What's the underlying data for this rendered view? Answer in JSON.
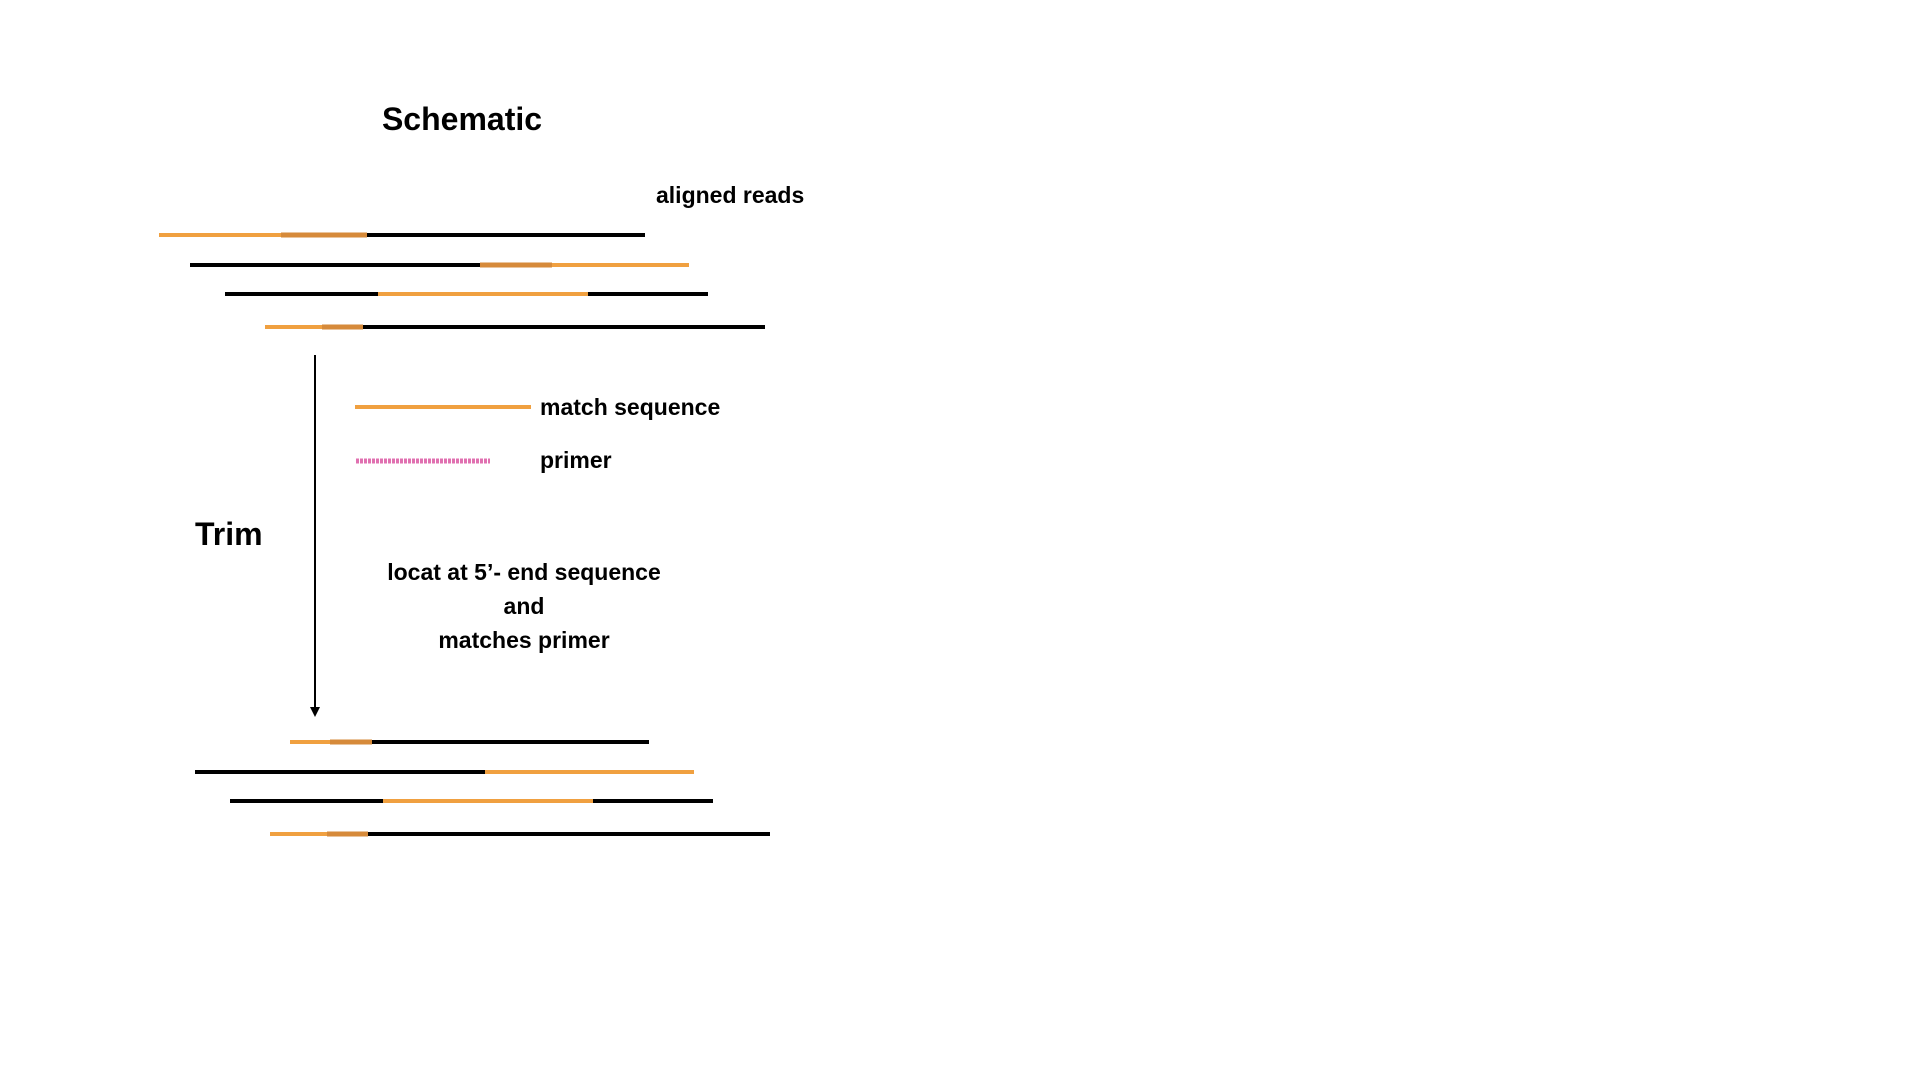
{
  "title": "Schematic",
  "labels": {
    "aligned_reads": "aligned reads",
    "match_sequence": "match sequence",
    "primer": "primer",
    "trim": "Trim"
  },
  "note_lines": [
    "locat at 5’- end sequence",
    "and",
    "matches primer"
  ],
  "colors": {
    "read": "#000000",
    "match": "#f0a040",
    "match_overlap": "#d68a3a",
    "primer": "#e070b0"
  }
}
